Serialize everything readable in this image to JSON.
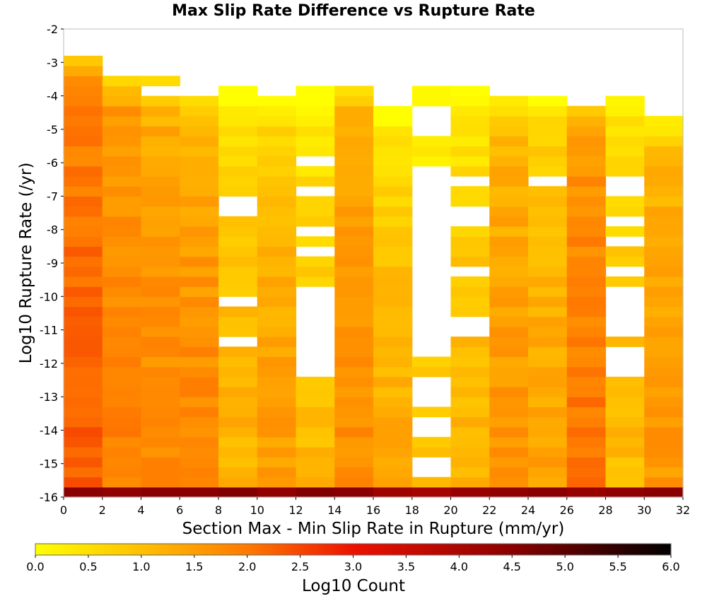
{
  "chart_data": {
    "type": "heatmap",
    "title": "Max Slip Rate Difference vs Rupture Rate",
    "xlabel": "Section Max - Min Slip Rate in Rupture (mm/yr)",
    "ylabel": "Log10 Rupture Rate (/yr)",
    "xlim": [
      0,
      32
    ],
    "ylim": [
      -16,
      -2
    ],
    "x_ticks": [
      "0",
      "2",
      "4",
      "6",
      "8",
      "10",
      "12",
      "14",
      "16",
      "18",
      "20",
      "22",
      "24",
      "26",
      "28",
      "30",
      "32"
    ],
    "y_ticks": [
      "-2",
      "-3",
      "-4",
      "-5",
      "-6",
      "-7",
      "-8",
      "-9",
      "-10",
      "-11",
      "-12",
      "-13",
      "-14",
      "-15",
      "-16"
    ],
    "x_bin_width": 2,
    "y_bin_height": 0.3,
    "y_bin_start": -16,
    "colorbar": {
      "label": "Log10 Count",
      "range": [
        0.0,
        6.0
      ],
      "ticks": [
        "0.0",
        "0.5",
        "1.0",
        "1.5",
        "2.0",
        "2.5",
        "3.0",
        "3.5",
        "4.0",
        "4.5",
        "5.0",
        "5.5",
        "6.0"
      ],
      "stops": [
        {
          "v": 0.0,
          "color": "#ffff00"
        },
        {
          "v": 1.0,
          "color": "#ffc000"
        },
        {
          "v": 2.0,
          "color": "#ff7a00"
        },
        {
          "v": 3.0,
          "color": "#ee1100"
        },
        {
          "v": 4.5,
          "color": "#8a0000"
        },
        {
          "v": 6.0,
          "color": "#000000"
        }
      ]
    },
    "columns": [
      {
        "x": 0,
        "top": -2.7,
        "lo": 1.7,
        "hi": 2.3,
        "tail": 0.4,
        "gaps": []
      },
      {
        "x": 2,
        "top": -3.3,
        "lo": 1.5,
        "hi": 1.9,
        "tail": 0.5,
        "gaps": []
      },
      {
        "x": 4,
        "top": -3.3,
        "lo": 1.1,
        "hi": 1.8,
        "tail": 0.4,
        "gaps": [
          [
            -3.9,
            -3.6
          ]
        ]
      },
      {
        "x": 6,
        "top": -3.9,
        "lo": 1.0,
        "hi": 1.8,
        "tail": 0.4,
        "gaps": []
      },
      {
        "x": 8,
        "top": -3.6,
        "lo": 0.3,
        "hi": 1.2,
        "tail": 0.3,
        "gaps": [
          [
            -7.5,
            -6.9
          ],
          [
            -10.2,
            -9.9
          ],
          [
            -11.4,
            -11.1
          ]
        ]
      },
      {
        "x": 10,
        "top": -3.9,
        "lo": 0.5,
        "hi": 1.5,
        "tail": 0.5,
        "gaps": []
      },
      {
        "x": 12,
        "top": -3.6,
        "lo": 0.2,
        "hi": 1.1,
        "tail": 0.3,
        "gaps": [
          [
            -6.0,
            -5.7
          ],
          [
            -6.9,
            -6.6
          ],
          [
            -8.1,
            -7.8
          ],
          [
            -8.7,
            -8.4
          ],
          [
            -12.3,
            -9.6
          ]
        ]
      },
      {
        "x": 14,
        "top": -3.6,
        "lo": 1.3,
        "hi": 1.7,
        "tail": 0.5,
        "gaps": []
      },
      {
        "x": 16,
        "top": -4.2,
        "lo": 0.2,
        "hi": 1.3,
        "tail": 0.2,
        "gaps": []
      },
      {
        "x": 18,
        "top": -3.6,
        "lo": 0.1,
        "hi": 0.9,
        "tail": 0.2,
        "gaps": [
          [
            -4.8,
            -4.2
          ],
          [
            -5.1,
            -4.8
          ],
          [
            -11.7,
            -6.0
          ],
          [
            -13.2,
            -12.3
          ],
          [
            -14.1,
            -13.5
          ],
          [
            -15.3,
            -14.7
          ]
        ]
      },
      {
        "x": 20,
        "top": -3.6,
        "lo": 0.1,
        "hi": 1.2,
        "tail": 0.3,
        "gaps": [
          [
            -6.6,
            -6.3
          ],
          [
            -7.8,
            -7.2
          ],
          [
            -9.3,
            -9.0
          ],
          [
            -11.1,
            -10.5
          ],
          [
            -11.9,
            -11.7
          ]
        ]
      },
      {
        "x": 22,
        "top": -3.9,
        "lo": 1.0,
        "hi": 1.6,
        "tail": 0.4,
        "gaps": []
      },
      {
        "x": 24,
        "top": -3.9,
        "lo": 0.5,
        "hi": 1.4,
        "tail": 0.4,
        "gaps": [
          [
            -6.6,
            -6.3
          ]
        ]
      },
      {
        "x": 26,
        "top": -4.2,
        "lo": 1.5,
        "hi": 2.0,
        "tail": 0.4,
        "gaps": []
      },
      {
        "x": 28,
        "top": -3.6,
        "lo": 0.2,
        "hi": 1.1,
        "tail": 0.3,
        "gaps": [
          [
            -3.9,
            -3.6
          ],
          [
            -6.9,
            -6.3
          ],
          [
            -7.8,
            -7.5
          ],
          [
            -8.4,
            -8.1
          ],
          [
            -9.3,
            -9.0
          ],
          [
            -11.1,
            -9.6
          ],
          [
            -12.3,
            -11.4
          ]
        ]
      },
      {
        "x": 30,
        "top": -4.5,
        "lo": 1.0,
        "hi": 1.6,
        "tail": 0.5,
        "gaps": []
      }
    ],
    "bottom_row_values": [
      4.5,
      4.4,
      4.5,
      4.5,
      4.6,
      4.4,
      4.6,
      4.5,
      4.2,
      4.1,
      4.3,
      4.4,
      4.5,
      4.3,
      4.4,
      4.5
    ]
  }
}
